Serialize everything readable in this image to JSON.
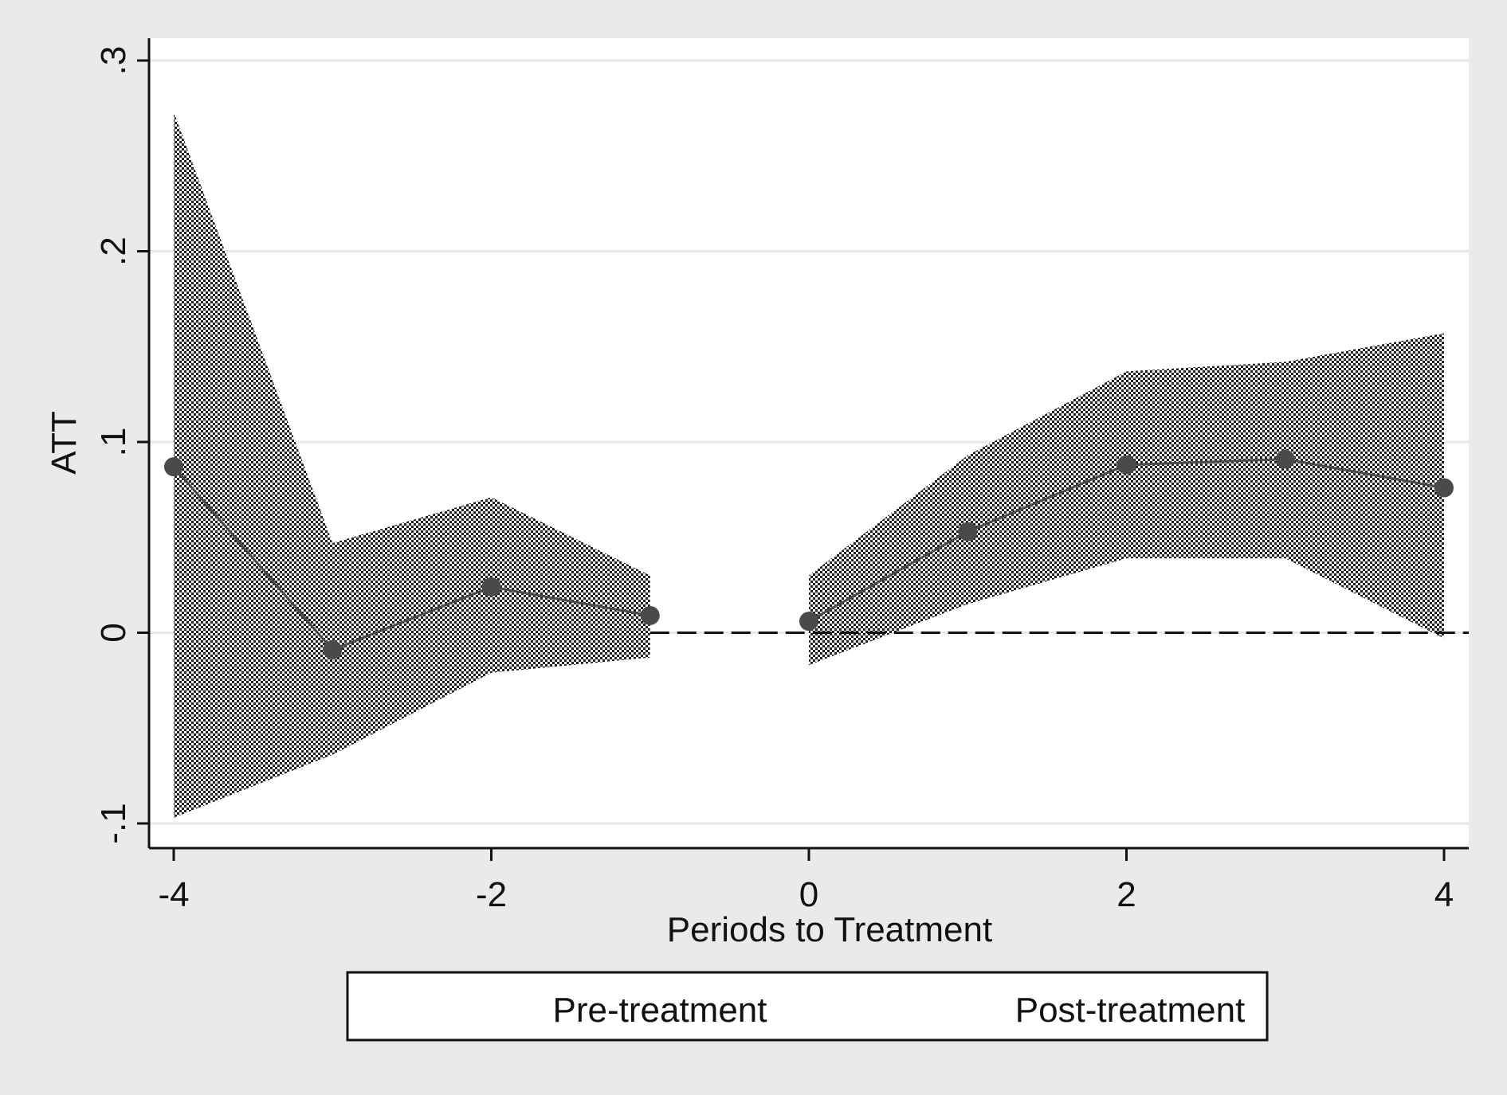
{
  "chart_data": {
    "type": "line",
    "title": "",
    "xlabel": "Periods to Treatment",
    "ylabel": "ATT",
    "xlim": [
      -4,
      4
    ],
    "ylim": [
      -0.1,
      0.3
    ],
    "x_ticks": [
      -4,
      -2,
      0,
      2,
      4
    ],
    "x_tick_labels": [
      "-4",
      "-2",
      "0",
      "2",
      "4"
    ],
    "y_ticks": [
      -0.1,
      0,
      0.1,
      0.2,
      0.3
    ],
    "y_tick_labels": [
      "-.1",
      "0",
      ".1",
      ".2",
      ".3"
    ],
    "grid": "horizontal",
    "reference_line": {
      "y": 0,
      "style": "dashed"
    },
    "series": [
      {
        "name": "Pre-treatment",
        "x": [
          -4,
          -3,
          -2,
          -1
        ],
        "y": [
          0.087,
          -0.009,
          0.024,
          0.009
        ],
        "ci_upper": [
          0.273,
          0.047,
          0.071,
          0.03
        ],
        "ci_lower": [
          -0.097,
          -0.064,
          -0.021,
          -0.013
        ]
      },
      {
        "name": "Post-treatment",
        "x": [
          0,
          1,
          2,
          3,
          4
        ],
        "y": [
          0.006,
          0.053,
          0.088,
          0.091,
          0.076
        ],
        "ci_upper": [
          0.03,
          0.093,
          0.137,
          0.142,
          0.157
        ],
        "ci_lower": [
          -0.017,
          0.015,
          0.039,
          0.039,
          -0.003
        ]
      }
    ],
    "legend": {
      "position": "bottom",
      "entries": [
        "Pre-treatment",
        "Post-treatment"
      ]
    },
    "colors": {
      "background": "#eaeaea",
      "plot_area": "#ffffff",
      "line": "#4a4a4a",
      "marker": "#4a4a4a",
      "band_dark": "#1f1f1f",
      "grid": "#e8e8e8"
    }
  }
}
